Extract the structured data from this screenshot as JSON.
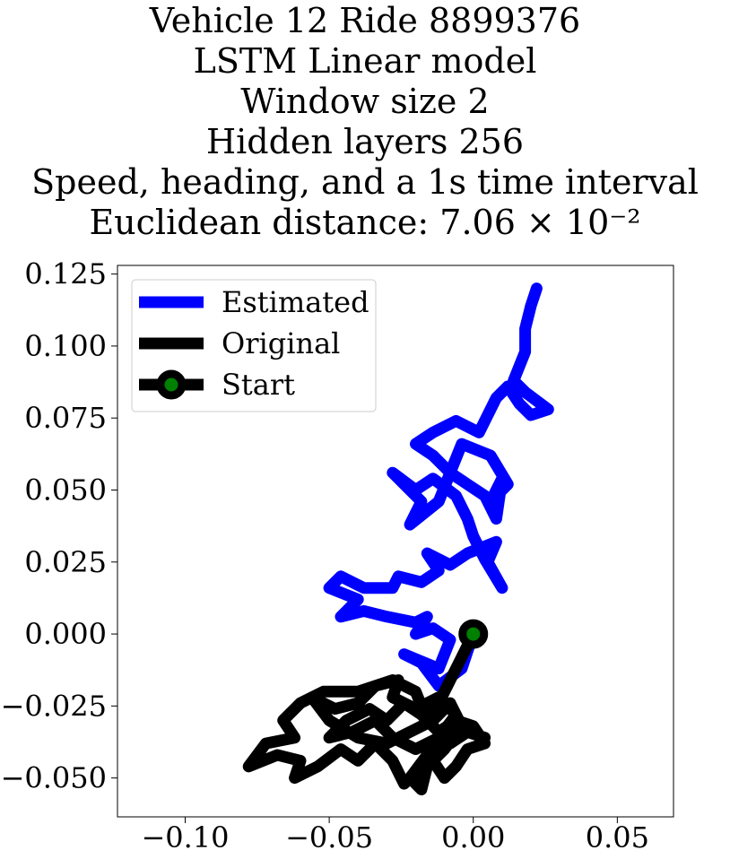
{
  "chart_data": {
    "type": "line",
    "title": [
      "Vehicle 12 Ride 8899376",
      "LSTM Linear model",
      "Window size 2",
      "Hidden layers 256",
      "Speed, heading, and a 1s time interval",
      "Euclidean distance: 7.06 × 10⁻²"
    ],
    "xlim": [
      -0.1235,
      0.0695
    ],
    "ylim": [
      -0.0635,
      0.128
    ],
    "x_ticks": [
      -0.1,
      -0.05,
      0.0,
      0.05
    ],
    "x_tick_labels": [
      "−0.10",
      "−0.05",
      "0.00",
      "0.05"
    ],
    "y_ticks": [
      0.125,
      0.1,
      0.075,
      0.05,
      0.025,
      0.0,
      -0.025,
      -0.05
    ],
    "y_tick_labels": [
      "0.125",
      "0.100",
      "0.075",
      "0.050",
      "0.025",
      "0.000",
      "−0.025",
      "−0.050"
    ],
    "grid": false,
    "legend": {
      "position": "top-left",
      "entries": [
        "Estimated",
        "Original",
        "Start"
      ]
    },
    "series": [
      {
        "name": "Estimated",
        "color": "#0000ff",
        "points": [
          [
            0.0,
            0.0
          ],
          [
            -0.004,
            -0.012
          ],
          [
            -0.012,
            -0.018
          ],
          [
            -0.018,
            -0.01
          ],
          [
            -0.024,
            -0.007
          ],
          [
            -0.012,
            -0.012
          ],
          [
            -0.008,
            -0.002
          ],
          [
            -0.014,
            0.002
          ],
          [
            -0.02,
            0.0
          ],
          [
            -0.016,
            0.006
          ],
          [
            -0.02,
            0.004
          ],
          [
            -0.03,
            0.006
          ],
          [
            -0.038,
            0.008
          ],
          [
            -0.046,
            0.006
          ],
          [
            -0.04,
            0.012
          ],
          [
            -0.05,
            0.016
          ],
          [
            -0.046,
            0.02
          ],
          [
            -0.038,
            0.016
          ],
          [
            -0.028,
            0.016
          ],
          [
            -0.026,
            0.02
          ],
          [
            -0.018,
            0.018
          ],
          [
            -0.012,
            0.022
          ],
          [
            -0.016,
            0.028
          ],
          [
            -0.008,
            0.024
          ],
          [
            -0.002,
            0.028
          ],
          [
            0.008,
            0.032
          ],
          [
            0.005,
            0.025
          ],
          [
            0.01,
            0.016
          ],
          [
            0.004,
            0.026
          ],
          [
            0.0,
            0.034
          ],
          [
            -0.002,
            0.04
          ],
          [
            -0.006,
            0.048
          ],
          [
            -0.014,
            0.054
          ],
          [
            -0.02,
            0.05
          ],
          [
            -0.028,
            0.056
          ],
          [
            -0.018,
            0.046
          ],
          [
            -0.022,
            0.038
          ],
          [
            -0.012,
            0.046
          ],
          [
            -0.008,
            0.056
          ],
          [
            -0.002,
            0.052
          ],
          [
            0.004,
            0.048
          ],
          [
            0.008,
            0.04
          ],
          [
            0.01,
            0.054
          ],
          [
            0.006,
            0.046
          ],
          [
            0.012,
            0.052
          ],
          [
            0.006,
            0.062
          ],
          [
            -0.004,
            0.066
          ],
          [
            -0.008,
            0.056
          ],
          [
            -0.014,
            0.062
          ],
          [
            -0.02,
            0.066
          ],
          [
            -0.014,
            0.07
          ],
          [
            -0.006,
            0.074
          ],
          [
            0.002,
            0.07
          ],
          [
            0.008,
            0.082
          ],
          [
            0.012,
            0.086
          ],
          [
            0.016,
            0.08
          ],
          [
            0.02,
            0.076
          ],
          [
            0.026,
            0.078
          ],
          [
            0.018,
            0.084
          ],
          [
            0.014,
            0.088
          ],
          [
            0.018,
            0.098
          ],
          [
            0.018,
            0.106
          ],
          [
            0.02,
            0.114
          ],
          [
            0.022,
            0.12
          ]
        ]
      },
      {
        "name": "Original",
        "color": "#000000",
        "points": [
          [
            0.0,
            0.0
          ],
          [
            -0.004,
            -0.008
          ],
          [
            -0.008,
            -0.016
          ],
          [
            -0.012,
            -0.024
          ],
          [
            -0.016,
            -0.03
          ],
          [
            -0.02,
            -0.02
          ],
          [
            -0.028,
            -0.016
          ],
          [
            -0.04,
            -0.02
          ],
          [
            -0.052,
            -0.02
          ],
          [
            -0.06,
            -0.024
          ],
          [
            -0.066,
            -0.03
          ],
          [
            -0.062,
            -0.036
          ],
          [
            -0.072,
            -0.038
          ],
          [
            -0.078,
            -0.046
          ],
          [
            -0.068,
            -0.042
          ],
          [
            -0.06,
            -0.044
          ],
          [
            -0.062,
            -0.05
          ],
          [
            -0.054,
            -0.046
          ],
          [
            -0.046,
            -0.04
          ],
          [
            -0.04,
            -0.044
          ],
          [
            -0.034,
            -0.038
          ],
          [
            -0.028,
            -0.044
          ],
          [
            -0.024,
            -0.052
          ],
          [
            -0.02,
            -0.048
          ],
          [
            -0.014,
            -0.044
          ],
          [
            -0.01,
            -0.05
          ],
          [
            -0.006,
            -0.046
          ],
          [
            -0.002,
            -0.04
          ],
          [
            0.004,
            -0.038
          ],
          [
            0.0,
            -0.032
          ],
          [
            -0.006,
            -0.03
          ],
          [
            -0.012,
            -0.034
          ],
          [
            -0.018,
            -0.028
          ],
          [
            -0.024,
            -0.024
          ],
          [
            -0.03,
            -0.03
          ],
          [
            -0.036,
            -0.026
          ],
          [
            -0.044,
            -0.03
          ],
          [
            -0.05,
            -0.036
          ],
          [
            -0.042,
            -0.034
          ],
          [
            -0.034,
            -0.03
          ],
          [
            -0.028,
            -0.036
          ],
          [
            -0.02,
            -0.04
          ],
          [
            -0.012,
            -0.036
          ],
          [
            -0.006,
            -0.028
          ],
          [
            -0.012,
            -0.022
          ],
          [
            -0.02,
            -0.026
          ],
          [
            -0.028,
            -0.022
          ],
          [
            -0.026,
            -0.016
          ],
          [
            -0.034,
            -0.018
          ],
          [
            -0.04,
            -0.024
          ],
          [
            -0.048,
            -0.026
          ],
          [
            -0.056,
            -0.022
          ],
          [
            -0.05,
            -0.03
          ],
          [
            -0.04,
            -0.036
          ],
          [
            -0.03,
            -0.038
          ],
          [
            -0.022,
            -0.034
          ],
          [
            -0.014,
            -0.03
          ],
          [
            -0.008,
            -0.024
          ],
          [
            -0.004,
            -0.032
          ],
          [
            -0.01,
            -0.04
          ],
          [
            -0.016,
            -0.046
          ],
          [
            -0.018,
            -0.054
          ],
          [
            -0.022,
            -0.05
          ],
          [
            -0.016,
            -0.042
          ],
          [
            -0.008,
            -0.038
          ],
          [
            -0.002,
            -0.034
          ],
          [
            0.004,
            -0.036
          ]
        ]
      }
    ],
    "start_point": {
      "x": 0.0,
      "y": 0.0,
      "marker_color": "#008000",
      "edge_color": "#000000"
    }
  }
}
